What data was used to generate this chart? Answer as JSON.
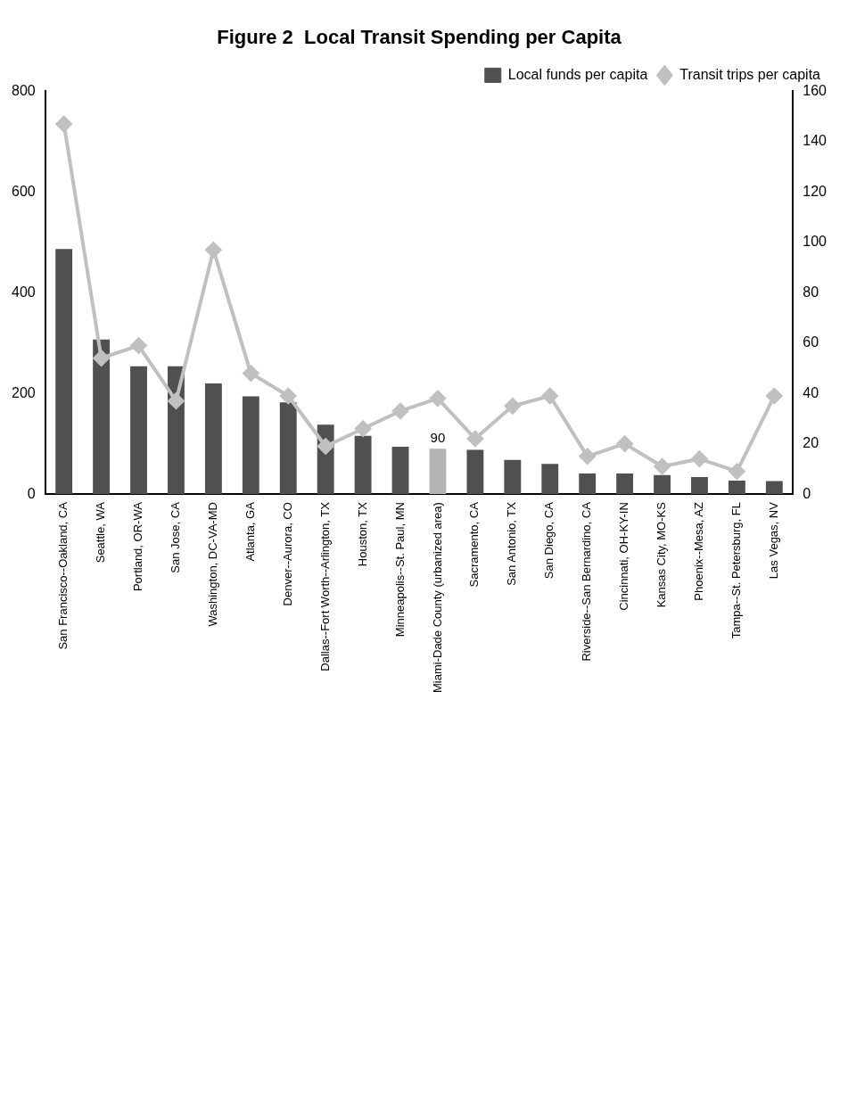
{
  "chart_data": {
    "type": "bar",
    "title": "Figure 2  Local Transit Spending per Capita",
    "categories": [
      "San Francisco--Oakland, CA",
      "Seattle, WA",
      "Portland, OR-WA",
      "San Jose, CA",
      "Washington, DC-VA-MD",
      "Atlanta, GA",
      "Denver--Aurora, CO",
      "Dallas--Fort Worth--Arlington, TX",
      "Houston, TX",
      "Minneapolis--St. Paul, MN",
      "Miami-Dade County (urbanized area)",
      "Sacramento, CA",
      "San Antonio, TX",
      "San Diego, CA",
      "Riverside--San Bernardino, CA",
      "Cincinnati, OH-KY-IN",
      "Kansas City, MO-KS",
      "Phoenix--Mesa, AZ",
      "Tampa--St. Petersburg, FL",
      "Las Vegas, NV"
    ],
    "series": [
      {
        "name": "Local funds per capita",
        "color": "#505050",
        "colors": [
          "#505050",
          "#505050",
          "#505050",
          "#505050",
          "#505050",
          "#505050",
          "#505050",
          "#505050",
          "#505050",
          "#505050",
          "#b4b4b4",
          "#505050",
          "#505050",
          "#505050",
          "#505050",
          "#505050",
          "#505050",
          "#505050",
          "#505050",
          "#505050"
        ],
        "values": [
          487,
          307,
          254,
          254,
          220,
          194,
          182,
          138,
          116,
          94,
          90,
          88,
          68,
          60,
          41,
          41,
          38,
          34,
          27,
          26
        ],
        "value_labels": [
          null,
          null,
          null,
          null,
          null,
          null,
          null,
          null,
          null,
          null,
          "90",
          null,
          null,
          null,
          null,
          null,
          null,
          null,
          null,
          null
        ]
      },
      {
        "name": "Transit trips per capita",
        "type": "line",
        "axis": "y2",
        "color": "#c0c0c0",
        "marker": "diamond",
        "values": [
          147,
          54,
          59,
          37,
          97,
          48,
          39,
          19,
          26,
          33,
          38,
          22,
          35,
          39,
          15,
          20,
          11,
          14,
          9,
          39
        ]
      }
    ],
    "ylim": [
      0,
      800
    ],
    "yticks": [
      0,
      200,
      400,
      600,
      800
    ],
    "y2lim": [
      0,
      160
    ],
    "y2ticks": [
      0,
      20,
      40,
      60,
      80,
      100,
      120,
      140,
      160
    ],
    "legend": "top right",
    "grid": false
  }
}
